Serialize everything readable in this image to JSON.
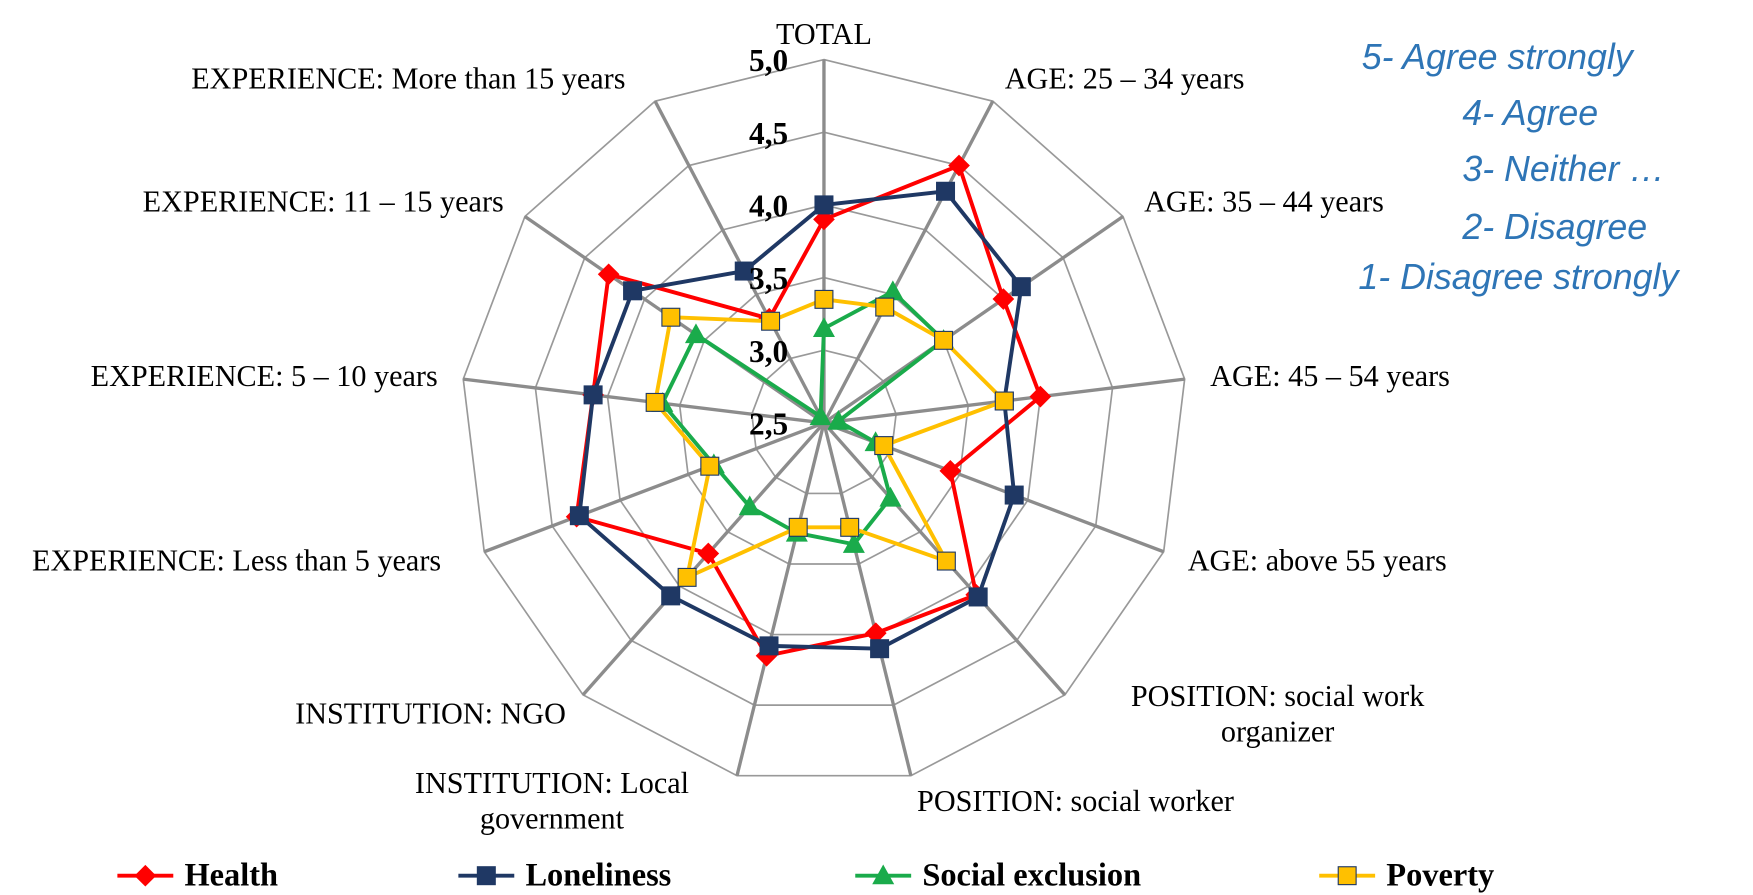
{
  "chart_data": {
    "type": "radar",
    "categories": [
      "TOTAL",
      "AGE: 25 – 34 years",
      "AGE: 35 – 44 years",
      "AGE: 45 – 54 years",
      "AGE: above 55 years",
      "POSITION:  social work organizer",
      "POSITION:  social worker",
      "INSTITUTION:  Local government",
      "INSTITUTION: NGO",
      "EXPERIENCE:  Less than 5 years",
      "EXPERIENCE: 5 – 10 years",
      "EXPERIENCE: 11 – 15 years",
      "EXPERIENCE:  More than 15 years"
    ],
    "series": [
      {
        "name": "Health",
        "color": "#ff0000",
        "marker": "diamond",
        "values": [
          3.9,
          4.5,
          4.0,
          4.0,
          3.43,
          4.08,
          3.99,
          4.15,
          3.7,
          4.32,
          4.1,
          4.3,
          3.31
        ]
      },
      {
        "name": "Loneliness",
        "color": "#1f3864",
        "marker": "square",
        "values": [
          4.0,
          4.3,
          4.15,
          3.75,
          3.9,
          4.1,
          4.1,
          4.08,
          4.09,
          4.3,
          4.1,
          4.1,
          3.68
        ]
      },
      {
        "name": "Social exclusion",
        "color": "#1aab4b",
        "marker": "triangle",
        "values": [
          3.15,
          3.52,
          3.5,
          2.6,
          2.88,
          3.19,
          3.36,
          3.28,
          3.27,
          3.31,
          3.62,
          3.57,
          2.55
        ]
      },
      {
        "name": "Poverty",
        "color": "#ffc000",
        "marker": "square",
        "values": [
          3.35,
          3.4,
          3.5,
          3.75,
          2.94,
          3.77,
          3.24,
          3.24,
          3.92,
          3.34,
          3.67,
          3.78,
          3.29
        ]
      }
    ],
    "rlim": [
      2.5,
      5.0
    ],
    "rticks": [
      {
        "value": 2.5,
        "label": "2,5"
      },
      {
        "value": 3.0,
        "label": "3,0"
      },
      {
        "value": 3.5,
        "label": "3,5"
      },
      {
        "value": 4.0,
        "label": "4,0"
      },
      {
        "value": 4.5,
        "label": "4,5"
      },
      {
        "value": 5.0,
        "label": "5,0"
      }
    ],
    "note": [
      "5- Agree strongly",
      "4- Agree",
      "3- Neither …",
      "2- Disagree",
      "1- Disagree strongly"
    ],
    "legend": "bottom"
  }
}
